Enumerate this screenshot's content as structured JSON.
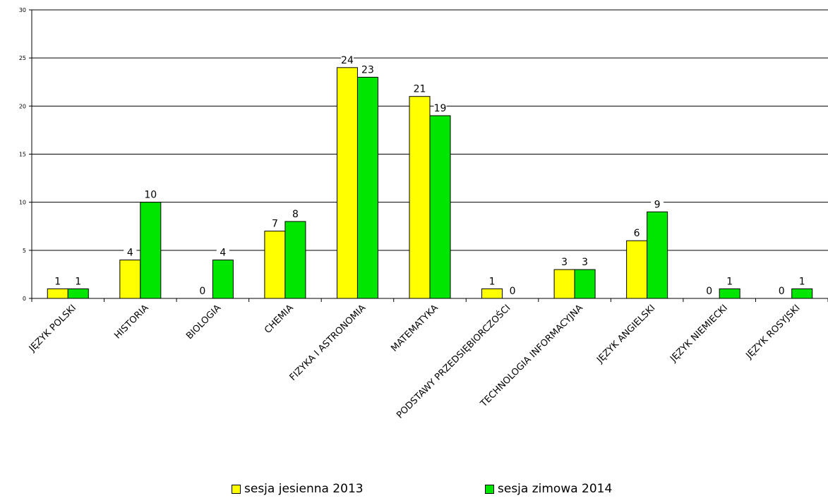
{
  "chart_data": {
    "type": "bar",
    "categories": [
      "JĘZYK POLSKI",
      "HISTORIA",
      "BIOLOGIA",
      "CHEMIA",
      "FIZYKA I ASTRONOMIA",
      "MATEMATYKA",
      "PODSTAWY PRZEDSIĘBIORCZOŚCI",
      "TECHNOLOGIA INFORMACYJNA",
      "JĘZYK ANGIELSKI",
      "JĘZYK NIEMIECKI",
      "JĘZYK ROSYJSKI"
    ],
    "series": [
      {
        "name": "sesja jesienna 2013",
        "color": "#ffff00",
        "values": [
          1,
          4,
          0,
          7,
          24,
          21,
          1,
          3,
          6,
          0,
          0
        ]
      },
      {
        "name": "sesja zimowa 2014",
        "color": "#00e600",
        "values": [
          1,
          10,
          4,
          8,
          23,
          19,
          0,
          3,
          9,
          1,
          1
        ]
      }
    ],
    "yticks": [
      0,
      5,
      10,
      15,
      20,
      25,
      30
    ],
    "ylim": [
      0,
      30
    ],
    "grid": true,
    "legend_position": "bottom"
  }
}
